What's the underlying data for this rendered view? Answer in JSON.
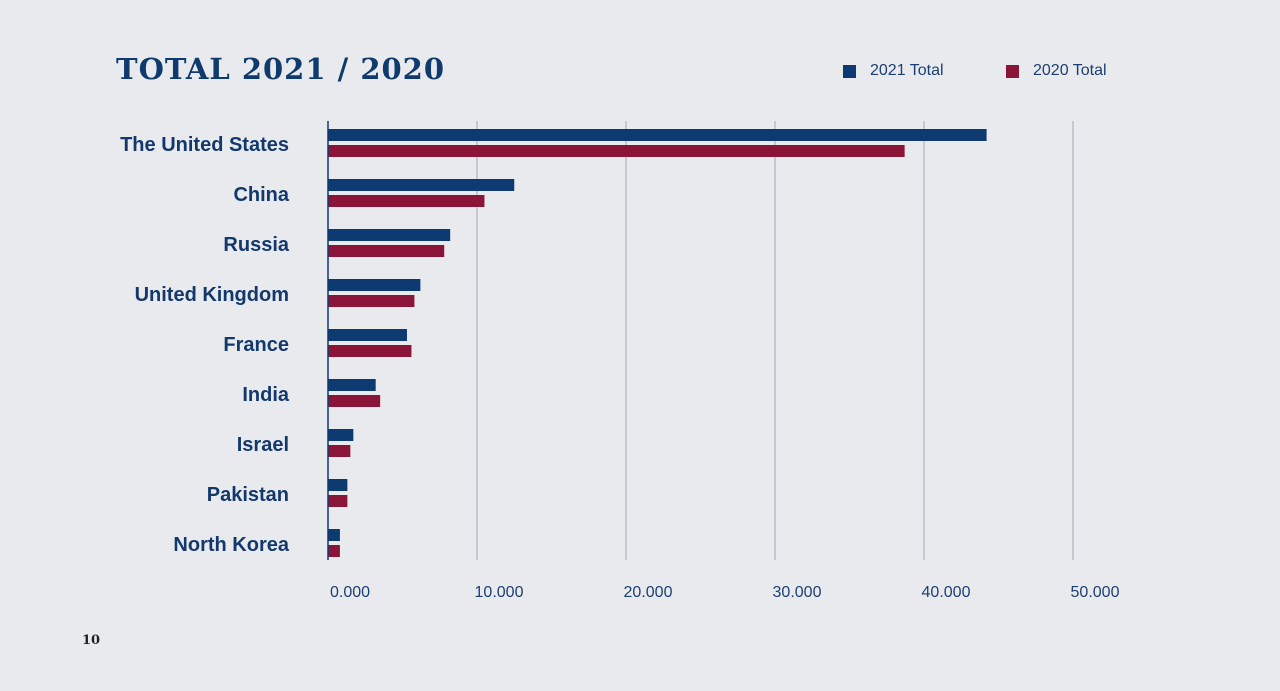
{
  "page": {
    "number": "10"
  },
  "colors": {
    "series_2021": "#0d3a70",
    "series_2020": "#8b1538",
    "grid": "#c6c9d0",
    "text": "#13396c",
    "background": "#e9eaee"
  },
  "chart_data": {
    "type": "bar",
    "orientation": "horizontal",
    "title": "TOTAL 2021 / 2020",
    "xlabel": "",
    "ylabel": "",
    "categories": [
      "The United States",
      "China",
      "Russia",
      "United Kingdom",
      "France",
      "India",
      "Israel",
      "Pakistan",
      "North Korea"
    ],
    "series": [
      {
        "name": "2021 Total",
        "values": [
          44200,
          12500,
          8200,
          6200,
          5300,
          3200,
          1700,
          1300,
          800
        ]
      },
      {
        "name": "2020 Total",
        "values": [
          38700,
          10500,
          7800,
          5800,
          5600,
          3500,
          1500,
          1300,
          800
        ]
      }
    ],
    "xlim": [
      0,
      50000
    ],
    "xticks": [
      0,
      10000,
      20000,
      30000,
      40000,
      50000
    ],
    "xtick_labels": [
      "0.000",
      "10.000",
      "20.000",
      "30.000",
      "40.000",
      "50.000"
    ],
    "grid": true,
    "legend_position": "top-right"
  }
}
